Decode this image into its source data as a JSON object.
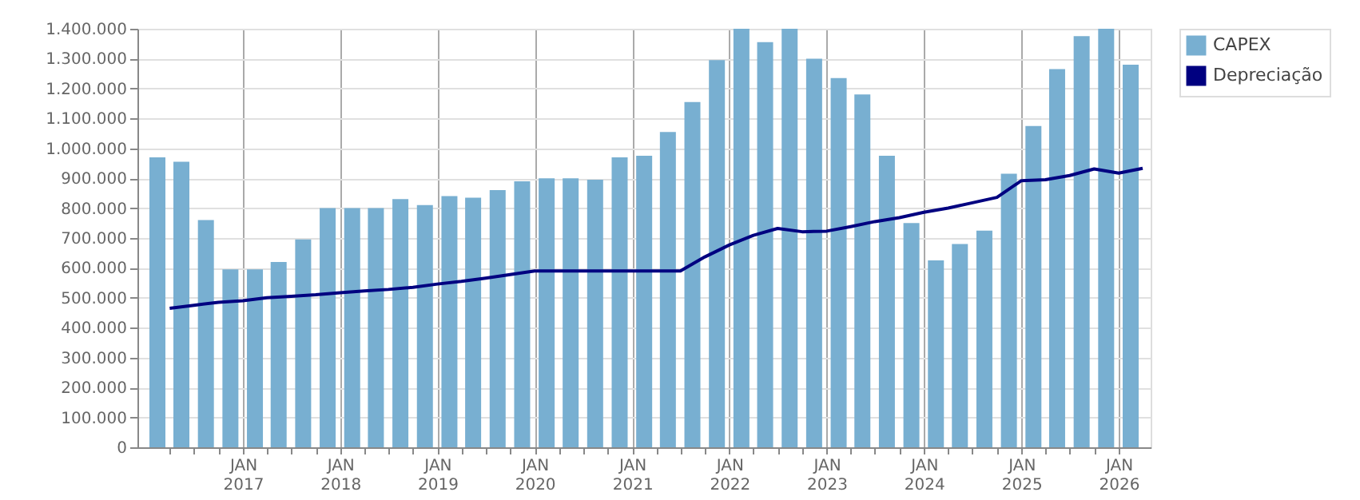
{
  "chart_data": {
    "type": "bar",
    "series": [
      {
        "name": "CAPEX",
        "color": "#78afd1",
        "x": [
          "2016-02-15",
          "2016-05-15",
          "2016-08-15",
          "2016-11-15",
          "2017-02-15",
          "2017-05-15",
          "2017-08-15",
          "2017-11-15",
          "2018-02-15",
          "2018-05-15",
          "2018-08-15",
          "2018-11-15",
          "2019-02-15",
          "2019-05-15",
          "2019-08-15",
          "2019-11-15",
          "2020-02-15",
          "2020-05-15",
          "2020-08-15",
          "2020-11-15",
          "2021-02-15",
          "2021-05-15",
          "2021-08-15",
          "2021-11-15",
          "2022-02-15",
          "2022-05-15",
          "2022-08-15",
          "2022-11-15",
          "2023-02-15",
          "2023-05-15",
          "2023-08-15",
          "2023-11-15",
          "2024-02-15",
          "2024-05-15",
          "2024-08-15",
          "2024-11-15",
          "2025-02-15",
          "2025-05-15",
          "2025-08-15",
          "2025-11-15",
          "2026-02-15"
        ],
        "values": [
          970000,
          955000,
          760000,
          595000,
          595000,
          620000,
          695000,
          800000,
          800000,
          800000,
          830000,
          810000,
          840000,
          835000,
          860000,
          890000,
          900000,
          900000,
          895000,
          970000,
          975000,
          1055000,
          1155000,
          1295000,
          1400000,
          1355000,
          1400000,
          1300000,
          1235000,
          1180000,
          975000,
          750000,
          625000,
          680000,
          725000,
          915000,
          1075000,
          1265000,
          1375000,
          1400000,
          1280000
        ]
      },
      {
        "name": "Depreciação",
        "type": "line",
        "color": "#000080",
        "x": [
          "2016-04-01",
          "2016-07-01",
          "2016-10-01",
          "2017-01-01",
          "2017-04-01",
          "2017-07-01",
          "2017-10-01",
          "2018-01-01",
          "2018-04-01",
          "2018-07-01",
          "2018-10-01",
          "2019-01-01",
          "2019-04-01",
          "2019-07-01",
          "2019-10-01",
          "2020-01-01",
          "2020-04-01",
          "2020-07-01",
          "2020-10-01",
          "2021-01-01",
          "2021-04-01",
          "2021-07-01",
          "2021-10-01",
          "2022-01-01",
          "2022-04-01",
          "2022-07-01",
          "2022-10-01",
          "2023-01-01",
          "2023-04-01",
          "2023-07-01",
          "2023-10-01",
          "2024-01-01",
          "2024-04-01",
          "2024-07-01",
          "2024-10-01",
          "2025-01-01",
          "2025-04-01",
          "2025-07-01",
          "2025-10-01",
          "2026-01-01",
          "2026-04-01"
        ],
        "values": [
          465000,
          475000,
          485000,
          490000,
          500000,
          505000,
          510000,
          517000,
          523000,
          528000,
          535000,
          546000,
          555000,
          566000,
          578000,
          590000,
          590000,
          590000,
          590000,
          590000,
          590000,
          590000,
          637000,
          677000,
          709000,
          732000,
          721000,
          723000,
          738000,
          755000,
          768000,
          786000,
          800000,
          818000,
          836000,
          892000,
          895000,
          909000,
          931000,
          917000,
          933000
        ]
      }
    ],
    "xlim": [
      "2016-01-01",
      "2026-04-01"
    ],
    "xticks": [
      {
        "value": "2016-04-01",
        "label": null
      },
      {
        "value": "2016-07-01",
        "label": null
      },
      {
        "value": "2016-10-01",
        "label": null
      },
      {
        "value": "2017-01-01",
        "label": "JAN 2017"
      },
      {
        "value": "2017-04-01",
        "label": null
      },
      {
        "value": "2017-07-01",
        "label": null
      },
      {
        "value": "2017-10-01",
        "label": null
      },
      {
        "value": "2018-01-01",
        "label": "JAN 2018"
      },
      {
        "value": "2018-04-01",
        "label": null
      },
      {
        "value": "2018-07-01",
        "label": null
      },
      {
        "value": "2018-10-01",
        "label": null
      },
      {
        "value": "2019-01-01",
        "label": "JAN 2019"
      },
      {
        "value": "2019-04-01",
        "label": null
      },
      {
        "value": "2019-07-01",
        "label": null
      },
      {
        "value": "2019-10-01",
        "label": null
      },
      {
        "value": "2020-01-01",
        "label": "JAN 2020"
      },
      {
        "value": "2020-04-01",
        "label": null
      },
      {
        "value": "2020-07-01",
        "label": null
      },
      {
        "value": "2020-10-01",
        "label": null
      },
      {
        "value": "2021-01-01",
        "label": "JAN 2021"
      },
      {
        "value": "2021-04-01",
        "label": null
      },
      {
        "value": "2021-07-01",
        "label": null
      },
      {
        "value": "2021-10-01",
        "label": null
      },
      {
        "value": "2022-01-01",
        "label": "JAN 2022"
      },
      {
        "value": "2022-04-01",
        "label": null
      },
      {
        "value": "2022-07-01",
        "label": null
      },
      {
        "value": "2022-10-01",
        "label": null
      },
      {
        "value": "2023-01-01",
        "label": "JAN 2023"
      },
      {
        "value": "2023-04-01",
        "label": null
      },
      {
        "value": "2023-07-01",
        "label": null
      },
      {
        "value": "2023-10-01",
        "label": null
      },
      {
        "value": "2024-01-01",
        "label": "JAN 2024"
      },
      {
        "value": "2024-04-01",
        "label": null
      },
      {
        "value": "2024-07-01",
        "label": null
      },
      {
        "value": "2024-10-01",
        "label": null
      },
      {
        "value": "2025-01-01",
        "label": "JAN 2025"
      },
      {
        "value": "2025-04-01",
        "label": null
      },
      {
        "value": "2025-07-01",
        "label": null
      },
      {
        "value": "2025-10-01",
        "label": null
      },
      {
        "value": "2026-01-01",
        "label": "JAN 2026"
      }
    ],
    "ylim": [
      0,
      1400000
    ],
    "yticks": [
      {
        "value": 0,
        "label": "0"
      },
      {
        "value": 100000,
        "label": "100.000"
      },
      {
        "value": 200000,
        "label": "200.000"
      },
      {
        "value": 300000,
        "label": "300.000"
      },
      {
        "value": 400000,
        "label": "400.000"
      },
      {
        "value": 500000,
        "label": "500.000"
      },
      {
        "value": 600000,
        "label": "600.000"
      },
      {
        "value": 700000,
        "label": "700.000"
      },
      {
        "value": 800000,
        "label": "800.000"
      },
      {
        "value": 900000,
        "label": "900.000"
      },
      {
        "value": 1000000,
        "label": "1.000.000"
      },
      {
        "value": 1100000,
        "label": "1.100.000"
      },
      {
        "value": 1200000,
        "label": "1.200.000"
      },
      {
        "value": 1300000,
        "label": "1.300.000"
      },
      {
        "value": 1400000,
        "label": "1.400.000"
      }
    ],
    "grid": true,
    "legend": "right",
    "marker": "none"
  }
}
